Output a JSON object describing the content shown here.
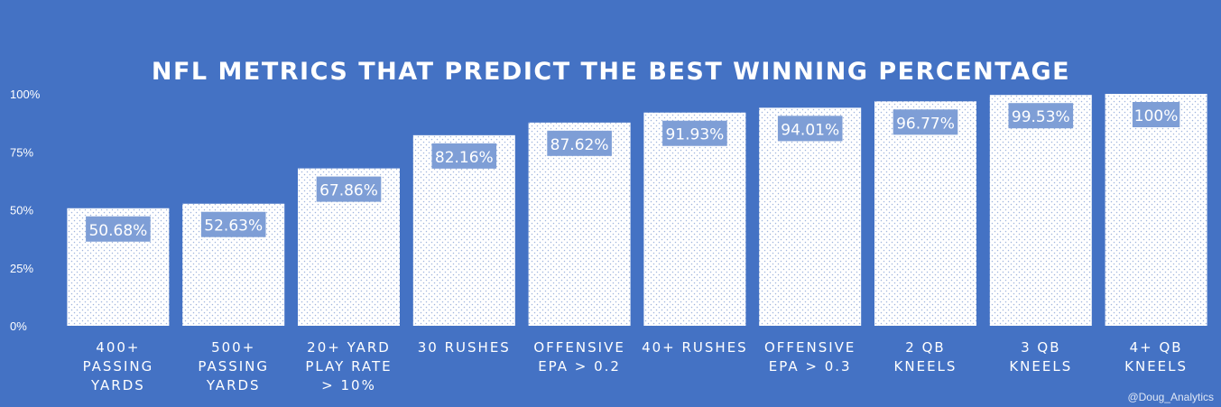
{
  "chart_data": {
    "type": "bar",
    "title": "NFL METRICS THAT PREDICT THE BEST WINNING PERCENTAGE",
    "categories": [
      "400+ PASSING YARDS",
      "500+ PASSING YARDS",
      "20+ YARD PLAY RATE > 10%",
      "30 RUSHES",
      "OFFENSIVE EPA > 0.2",
      "40+ RUSHES",
      "OFFENSIVE EPA > 0.3",
      "2 QB KNEELS",
      "3 QB KNEELS",
      "4+ QB KNEELS"
    ],
    "category_lines": [
      [
        "400+",
        "PASSING",
        "YARDS"
      ],
      [
        "500+",
        "PASSING",
        "YARDS"
      ],
      [
        "20+ YARD",
        "PLAY RATE",
        "> 10%"
      ],
      [
        "30 RUSHES"
      ],
      [
        "OFFENSIVE",
        "EPA > 0.2"
      ],
      [
        "40+ RUSHES"
      ],
      [
        "OFFENSIVE",
        "EPA > 0.3"
      ],
      [
        "2 QB",
        "KNEELS"
      ],
      [
        "3 QB",
        "KNEELS"
      ],
      [
        "4+ QB",
        "KNEELS"
      ]
    ],
    "values": [
      50.68,
      52.63,
      67.86,
      82.16,
      87.62,
      91.93,
      94.01,
      96.77,
      99.53,
      100
    ],
    "data_labels": [
      "50.68%",
      "52.63%",
      "67.86%",
      "82.16%",
      "87.62%",
      "91.93%",
      "94.01%",
      "96.77%",
      "99.53%",
      "100%"
    ],
    "yticks": [
      0,
      25,
      50,
      75,
      100
    ],
    "ytick_labels": [
      "0%",
      "25%",
      "50%",
      "75%",
      "100%"
    ],
    "ylim": [
      0,
      100
    ],
    "grid": false,
    "xlabel": "",
    "ylabel": ""
  },
  "watermark": "@Doug_Analytics",
  "colors": {
    "background": "#4472c4",
    "bar_fill": "#ffffff",
    "bar_dots": "#9fb5dd",
    "label_box": "#7e9ed6",
    "text": "#ffffff"
  }
}
